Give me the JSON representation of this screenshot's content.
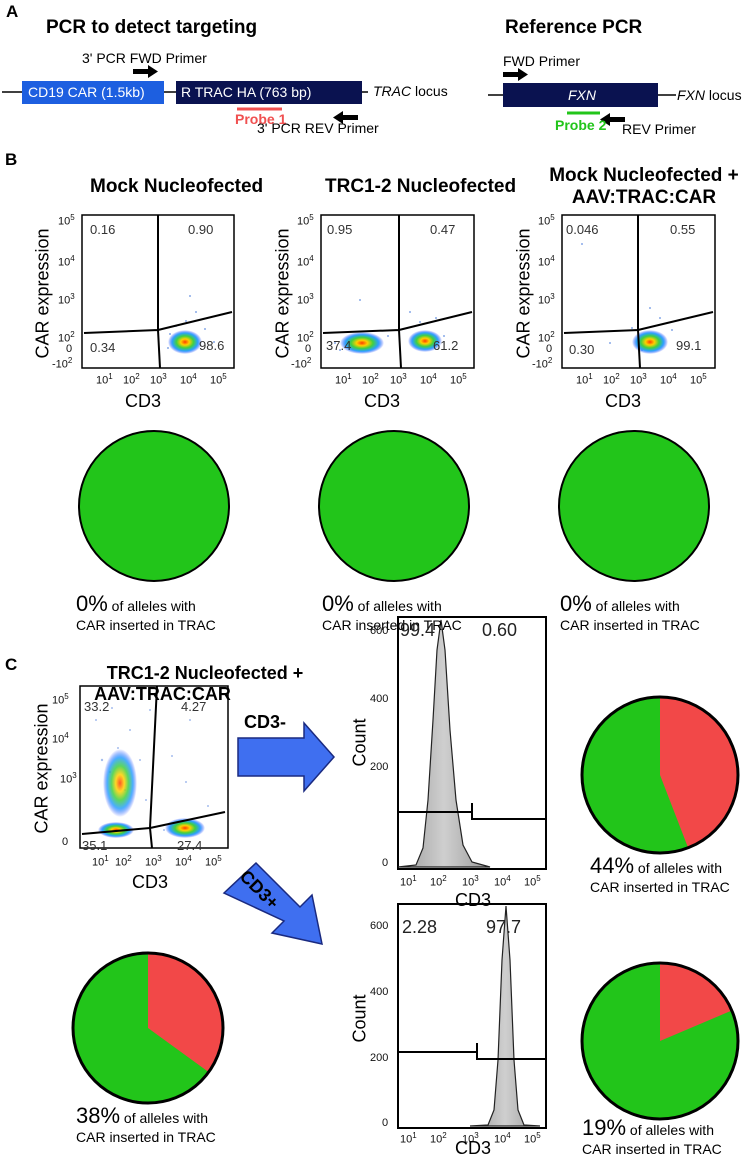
{
  "panels": {
    "A": "A",
    "B": "B",
    "C": "C"
  },
  "section_a": {
    "left": {
      "title": "PCR to detect targeting",
      "fwd_primer": "3' PCR FWD Primer",
      "car_box": "CD19 CAR (1.5kb)",
      "trac_box": "R TRAC HA (763 bp)",
      "locus_italic": "TRAC",
      "locus_suffix": " locus",
      "probe": "Probe 1",
      "rev_primer": "3' PCR REV Primer"
    },
    "right": {
      "title": "Reference PCR",
      "fwd_primer": "FWD Primer",
      "gene_box": "FXN",
      "locus_italic": "FXN",
      "locus_suffix": " locus",
      "probe": "Probe 2",
      "rev_primer": "REV Primer"
    }
  },
  "section_b": {
    "plots": [
      {
        "title": "Mock Nucleofected",
        "gates": {
          "ul": "0.16",
          "ur": "0.90",
          "ll": "0.34",
          "lr": "98.6"
        }
      },
      {
        "title": "TRC1-2 Nucleofected",
        "gates": {
          "ul": "0.95",
          "ur": "0.47",
          "ll": "37.4",
          "lr": "61.2"
        }
      },
      {
        "title_l1": "Mock Nucleofected +",
        "title_l2": "AAV:TRAC:CAR",
        "gates": {
          "ul": "0.046",
          "ur": "0.55",
          "ll": "0.30",
          "lr": "99.1"
        }
      }
    ],
    "pies": [
      {
        "percent_value": 0,
        "pct": "0%",
        "line1": " of alleles with",
        "line2": "CAR inserted in TRAC"
      },
      {
        "percent_value": 0,
        "pct": "0%",
        "line1": " of alleles with",
        "line2": "CAR inserted in TRAC"
      },
      {
        "percent_value": 0,
        "pct": "0%",
        "line1": " of alleles with",
        "line2": "CAR inserted in TRAC"
      }
    ]
  },
  "section_c": {
    "title_l1": "TRC1-2 Nucleofected +",
    "title_l2": "AAV:TRAC:CAR",
    "gates": {
      "ul": "33.2",
      "ur": "4.27",
      "ll": "35.1",
      "lr": "27.4"
    },
    "arrow_neg": "CD3-",
    "arrow_pos": "CD3+",
    "hist_neg": {
      "left": "99.4",
      "right": "0.60"
    },
    "hist_pos": {
      "left": "2.28",
      "right": "97.7"
    },
    "pies": [
      {
        "percent_value": 44,
        "pct": "44%",
        "line1": " of alleles with",
        "line2": "CAR inserted in TRAC"
      },
      {
        "percent_value": 38,
        "pct": "38%",
        "line1": " of alleles with",
        "line2": "CAR inserted in TRAC"
      },
      {
        "percent_value": 19,
        "pct": "19%",
        "line1": " of alleles with",
        "line2": "CAR inserted in TRAC"
      }
    ]
  },
  "axes": {
    "car_expression": "CAR expression",
    "cd3": "CD3",
    "count": "Count",
    "hist_y_ticks": [
      "600",
      "400",
      "200",
      "0"
    ],
    "car_ticks": {
      "top": "5",
      "mid": "4",
      "low": "3",
      "base2": "2",
      "zero": "0",
      "neg": "-10",
      "neg_exp": "2"
    },
    "x_exps": [
      "1",
      "2",
      "3",
      "4",
      "5"
    ],
    "base10": "10"
  },
  "colors": {
    "green": "#22c51a",
    "red": "#f24848",
    "blue_box": "#1d5fe0",
    "navy_box": "#0a1250",
    "probe1": "#f05050",
    "probe2": "#22c51a",
    "arrow": "#3f6ff0"
  }
}
